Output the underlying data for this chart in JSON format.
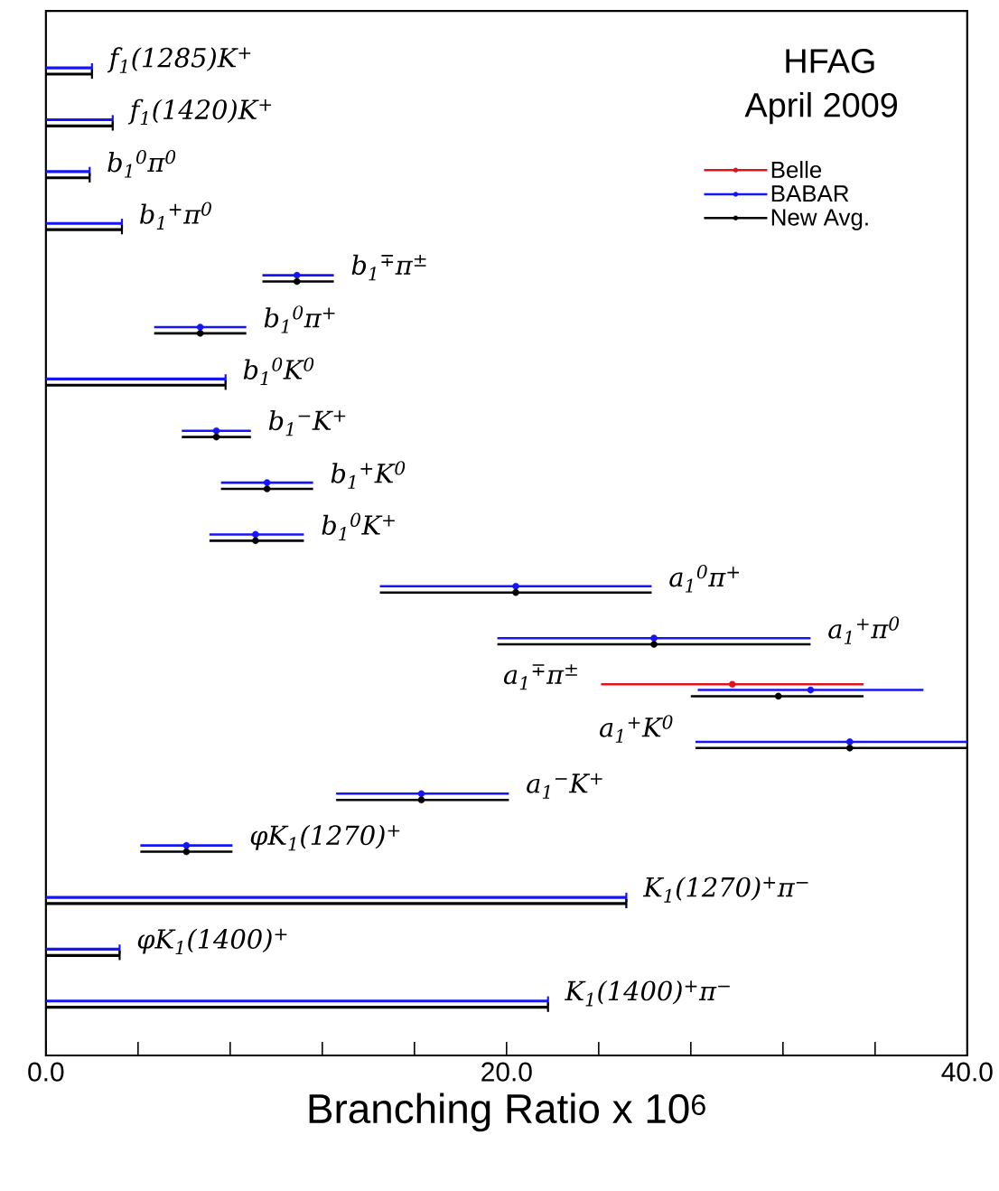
{
  "chart_data": {
    "type": "scatter",
    "orientation": "horizontal",
    "title": "HFAG",
    "subtitle": "April 2009",
    "xlabel": "Branching Ratio x 10$^{6}$",
    "categories": [
      "f$_{1}$(1285)K$^{+}$",
      "f$_{1}$(1420)K$^{+}$",
      "b$_{1}$$^{0}$π$^{0}$",
      "b$_{1}$$^{+}$π$^{0}$",
      "b$_{1}$$^{∓}$π$^{±}$",
      "b$_{1}$$^{0}$π$^{+}$",
      "b$_{1}$$^{0}$K$^{0}$",
      "b$_{1}$$^{−}$K$^{+}$",
      "b$_{1}$$^{+}$K$^{0}$",
      "b$_{1}$$^{0}$K$^{+}$",
      "a$_{1}$$^{0}$π$^{+}$",
      "a$_{1}$$^{+}$π$^{0}$",
      "a$_{1}$$^{∓}$π$^{±}$",
      "a$_{1}$$^{+}$K$^{0}$",
      "a$_{1}$$^{−}$K$^{+}$",
      "φK$_{1}$(1270)$^{+}$",
      "K$_{1}$(1270)$^{+}$π$^{−}$",
      "φK$_{1}$(1400)$^{+}$",
      "K$_{1}$(1400)$^{+}$π$^{−}$"
    ],
    "xlim": [
      0,
      40
    ],
    "xticks": [
      {
        "value": 0,
        "label": "0.0"
      },
      {
        "value": 4,
        "label": null
      },
      {
        "value": 8,
        "label": null
      },
      {
        "value": 12,
        "label": null
      },
      {
        "value": 16,
        "label": null
      },
      {
        "value": 20,
        "label": "20.0"
      },
      {
        "value": 24,
        "label": null
      },
      {
        "value": 28,
        "label": null
      },
      {
        "value": 32,
        "label": null
      },
      {
        "value": 36,
        "label": null
      },
      {
        "value": 40,
        "label": "40.0"
      }
    ],
    "tick_labels": "x",
    "legend": "top right",
    "marker": "circle",
    "series": [
      {
        "name": "Belle",
        "color": "#e0141c",
        "values": [
          null,
          null,
          null,
          null,
          null,
          null,
          null,
          null,
          null,
          null,
          null,
          null,
          29.8,
          null,
          null,
          null,
          null,
          null,
          null
        ],
        "errors": [
          null,
          null,
          null,
          null,
          null,
          null,
          null,
          null,
          null,
          null,
          null,
          null,
          [
            24.1,
            35.5
          ],
          null,
          null,
          null,
          null,
          null,
          null
        ]
      },
      {
        "name": "BABAR",
        "color": "#1515f5",
        "values": [
          null,
          null,
          null,
          null,
          10.9,
          6.7,
          null,
          7.4,
          9.6,
          9.1,
          20.4,
          26.4,
          33.2,
          34.9,
          16.3,
          6.1,
          null,
          null,
          null
        ],
        "errors": [
          null,
          null,
          null,
          null,
          [
            9.4,
            12.5
          ],
          [
            4.7,
            8.7
          ],
          null,
          [
            5.9,
            8.9
          ],
          [
            7.6,
            11.6
          ],
          [
            7.1,
            11.2
          ],
          [
            14.5,
            26.3
          ],
          [
            19.6,
            33.2
          ],
          [
            28.3,
            38.1
          ],
          [
            28.2,
            40.0
          ],
          [
            12.6,
            20.1
          ],
          [
            4.1,
            8.1
          ],
          null,
          null,
          null
        ]
      },
      {
        "name": "New Avg.",
        "color": "#000000",
        "values": [
          null,
          null,
          null,
          null,
          10.9,
          6.7,
          null,
          7.4,
          9.6,
          9.1,
          20.4,
          26.4,
          31.8,
          34.9,
          16.3,
          6.1,
          null,
          null,
          null
        ],
        "errors": [
          null,
          null,
          null,
          null,
          [
            9.4,
            12.5
          ],
          [
            4.7,
            8.7
          ],
          null,
          [
            5.9,
            8.9
          ],
          [
            7.6,
            11.6
          ],
          [
            7.1,
            11.2
          ],
          [
            14.5,
            26.3
          ],
          [
            19.6,
            33.2
          ],
          [
            28.0,
            35.5
          ],
          [
            28.2,
            40.0
          ],
          [
            12.6,
            20.1
          ],
          [
            4.1,
            8.1
          ],
          null,
          null,
          null
        ]
      },
      {
        "type": "bar",
        "color": "#1515f5",
        "values": [
          2.0,
          2.9,
          1.9,
          3.3,
          null,
          null,
          7.8,
          null,
          null,
          null,
          null,
          null,
          null,
          null,
          null,
          null,
          25.2,
          3.2,
          21.8
        ]
      },
      {
        "type": "bar",
        "color": "#000000",
        "values": [
          2.0,
          2.9,
          1.9,
          3.3,
          null,
          null,
          7.8,
          null,
          null,
          null,
          null,
          null,
          null,
          null,
          null,
          null,
          25.2,
          3.2,
          21.8
        ]
      }
    ]
  }
}
